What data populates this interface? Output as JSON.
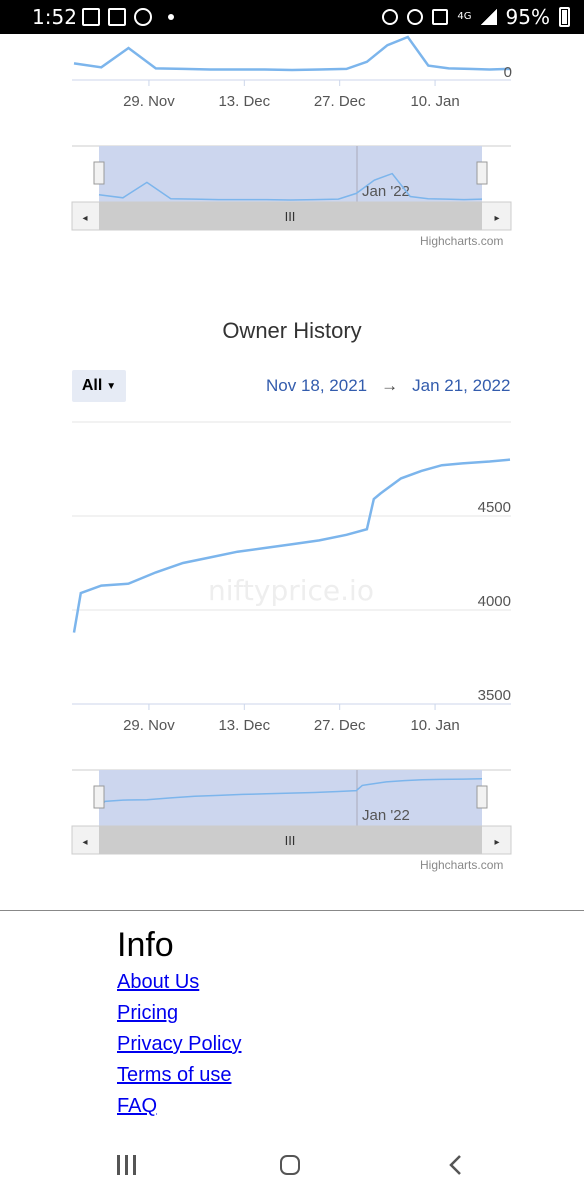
{
  "status_bar": {
    "time": "1:52",
    "battery": "95%",
    "network": "4G"
  },
  "top_chart": {
    "x_ticks": [
      "29. Nov",
      "13. Dec",
      "27. Dec",
      "10. Jan"
    ],
    "y_ticks": [
      "0"
    ],
    "navigator_label": "Jan '22",
    "credit": "Highcharts.com"
  },
  "owner_chart": {
    "title": "Owner History",
    "range_button": "All",
    "date_from": "Nov 18, 2021",
    "arrow": "→",
    "date_to": "Jan 21, 2022",
    "watermark": "niftyprice.io",
    "navigator_label": "Jan '22",
    "credit": "Highcharts.com"
  },
  "chart_data": [
    {
      "type": "line",
      "title": "",
      "x_labels": [
        "29. Nov",
        "13. Dec",
        "27. Dec",
        "10. Jan"
      ],
      "x": [
        "2021-11-18",
        "2021-11-22",
        "2021-11-26",
        "2021-11-30",
        "2021-12-04",
        "2021-12-08",
        "2021-12-12",
        "2021-12-16",
        "2021-12-20",
        "2021-12-24",
        "2021-12-28",
        "2021-12-31",
        "2022-01-03",
        "2022-01-06",
        "2022-01-09",
        "2022-01-12",
        "2022-01-15",
        "2022-01-18",
        "2022-01-21"
      ],
      "series": [
        {
          "values": [
            12,
            5,
            40,
            3,
            2,
            1,
            1,
            1,
            0,
            1,
            2,
            15,
            45,
            60,
            8,
            3,
            2,
            1,
            2
          ]
        }
      ],
      "ylabel": "",
      "y_ticks": [
        0
      ]
    },
    {
      "type": "line",
      "title": "Owner History",
      "x_labels": [
        "29. Nov",
        "13. Dec",
        "27. Dec",
        "10. Jan"
      ],
      "x": [
        "2021-11-18",
        "2021-11-19",
        "2021-11-22",
        "2021-11-26",
        "2021-11-30",
        "2021-12-04",
        "2021-12-08",
        "2021-12-12",
        "2021-12-16",
        "2021-12-20",
        "2021-12-24",
        "2021-12-28",
        "2021-12-31",
        "2022-01-01",
        "2022-01-02",
        "2022-01-05",
        "2022-01-08",
        "2022-01-11",
        "2022-01-14",
        "2022-01-18",
        "2022-01-21"
      ],
      "series": [
        {
          "values": [
            3880,
            4090,
            4130,
            4140,
            4200,
            4250,
            4280,
            4310,
            4330,
            4350,
            4370,
            4400,
            4430,
            4590,
            4620,
            4700,
            4740,
            4770,
            4780,
            4790,
            4800
          ]
        }
      ],
      "ylabel": "",
      "y_ticks": [
        3500,
        4000,
        4500
      ],
      "ylim": [
        3500,
        4950
      ]
    }
  ],
  "footer": {
    "heading": "Info",
    "links": [
      "About Us",
      "Pricing",
      "Privacy Policy",
      "Terms of use",
      "FAQ"
    ]
  }
}
